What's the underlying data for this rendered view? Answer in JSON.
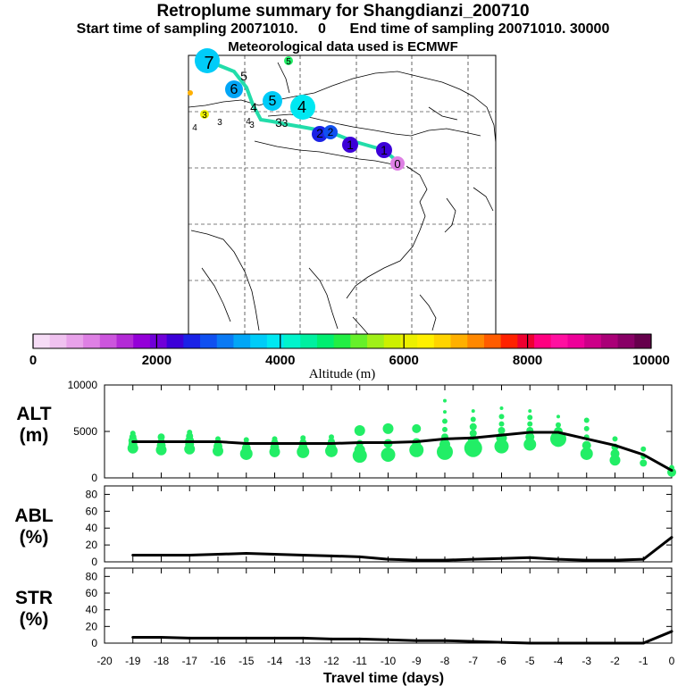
{
  "header": {
    "title": "Retroplume summary for Shangdianzi_200710",
    "subtitle": "Start time of sampling 20071010.     0      End time of sampling 20071010. 30000",
    "met_line": "Meteorological data used is ECMWF"
  },
  "colors": {
    "dot": "#22ee66",
    "line": "#000000",
    "track": "#22ddaa"
  },
  "chart_data": [
    {
      "type": "map",
      "name": "retroplume-map",
      "track_labels": [
        "7",
        "5",
        "5",
        "6",
        "5",
        "4",
        "4",
        "3",
        "3",
        "3",
        "4",
        "4",
        "3",
        "3",
        "2",
        "2",
        "1",
        "1",
        "0"
      ]
    },
    {
      "type": "colorbar",
      "title": "Altitude (m)",
      "range": [
        0,
        10000
      ],
      "ticks": [
        0,
        2000,
        4000,
        6000,
        8000,
        10000
      ],
      "colors": [
        "#f6dcf6",
        "#f0c2f0",
        "#e8a2ea",
        "#de80e4",
        "#cc55dd",
        "#b32ad6",
        "#9400d8",
        "#7000d8",
        "#3c00d8",
        "#1a22e6",
        "#1050f0",
        "#0a7af4",
        "#02a6f6",
        "#00ccf8",
        "#00e8f2",
        "#02f4cc",
        "#00f0a0",
        "#00ee70",
        "#22ee44",
        "#66f02a",
        "#a0f018",
        "#ccf000",
        "#ecf000",
        "#fff000",
        "#ffd400",
        "#ffb000",
        "#ff8800",
        "#ff5c00",
        "#ff2200",
        "#ee0030",
        "#ff0080",
        "#ff10a0",
        "#ee0099",
        "#cc0088",
        "#aa0077",
        "#880066",
        "#66004c"
      ]
    },
    {
      "type": "line",
      "name": "ALT",
      "ylabel": "ALT\n(m)",
      "ylim": [
        0,
        10000
      ],
      "yticks": [
        0,
        5000,
        10000
      ],
      "x": [
        -19,
        -18,
        -17,
        -16,
        -15,
        -14,
        -13,
        -12,
        -11,
        -10,
        -9,
        -8,
        -7,
        -6,
        -5,
        -4,
        -3,
        -2,
        -1,
        0
      ],
      "values": [
        3900,
        3900,
        3900,
        3900,
        3700,
        3700,
        3700,
        3700,
        3800,
        3800,
        3900,
        4200,
        4300,
        4600,
        4900,
        4900,
        4200,
        3500,
        2500,
        800
      ],
      "dots": [
        {
          "x": -19,
          "ys": [
            3200,
            3600,
            4000,
            4400,
            4800
          ],
          "s": [
            6,
            5,
            5,
            4,
            3
          ]
        },
        {
          "x": -18,
          "ys": [
            3000,
            3500,
            3900,
            4400
          ],
          "s": [
            6,
            5,
            4,
            4
          ]
        },
        {
          "x": -17,
          "ys": [
            3100,
            3600,
            4000,
            4500,
            4900
          ],
          "s": [
            6,
            5,
            5,
            4,
            3
          ]
        },
        {
          "x": -16,
          "ys": [
            2900,
            3400,
            3800,
            4200
          ],
          "s": [
            6,
            5,
            4,
            3
          ]
        },
        {
          "x": -15,
          "ys": [
            2600,
            3200,
            3600,
            4100
          ],
          "s": [
            7,
            5,
            4,
            3
          ]
        },
        {
          "x": -14,
          "ys": [
            2800,
            3300,
            3800,
            4200
          ],
          "s": [
            6,
            5,
            4,
            3
          ]
        },
        {
          "x": -13,
          "ys": [
            2800,
            3300,
            3800,
            4300
          ],
          "s": [
            7,
            5,
            4,
            3
          ]
        },
        {
          "x": -12,
          "ys": [
            2900,
            3400,
            3900,
            4400
          ],
          "s": [
            7,
            5,
            4,
            3
          ]
        },
        {
          "x": -11,
          "ys": [
            2400,
            3000,
            3700,
            5100
          ],
          "s": [
            8,
            6,
            4,
            6
          ]
        },
        {
          "x": -10,
          "ys": [
            2500,
            3700,
            5300
          ],
          "s": [
            8,
            5,
            6
          ]
        },
        {
          "x": -9,
          "ys": [
            3000,
            3800,
            5300
          ],
          "s": [
            8,
            5,
            5
          ]
        },
        {
          "x": -8,
          "ys": [
            2800,
            3600,
            4400,
            5200,
            6100,
            7100,
            8300
          ],
          "s": [
            9,
            6,
            4,
            3,
            3,
            2,
            2
          ]
        },
        {
          "x": -7,
          "ys": [
            3200,
            4000,
            4800,
            5500,
            6300,
            7200
          ],
          "s": [
            10,
            6,
            4,
            4,
            3,
            2
          ]
        },
        {
          "x": -6,
          "ys": [
            3400,
            4300,
            5100,
            5800,
            6600,
            7500
          ],
          "s": [
            8,
            6,
            4,
            3,
            3,
            2
          ]
        },
        {
          "x": -5,
          "ys": [
            3600,
            4400,
            5100,
            5800,
            6500,
            7200
          ],
          "s": [
            7,
            5,
            4,
            3,
            3,
            2
          ]
        },
        {
          "x": -4,
          "ys": [
            4200,
            5000,
            5700,
            6600
          ],
          "s": [
            9,
            5,
            3,
            2
          ]
        },
        {
          "x": -3,
          "ys": [
            2600,
            3500,
            4400,
            5300,
            6200
          ],
          "s": [
            7,
            5,
            3,
            3,
            3
          ]
        },
        {
          "x": -2,
          "ys": [
            1900,
            2600,
            3300,
            4200
          ],
          "s": [
            6,
            5,
            4,
            3
          ]
        },
        {
          "x": -1,
          "ys": [
            1600,
            2300,
            3100
          ],
          "s": [
            4,
            3,
            3
          ]
        },
        {
          "x": 0,
          "ys": [
            600,
            1100
          ],
          "s": [
            5,
            3
          ]
        }
      ]
    },
    {
      "type": "line",
      "name": "ABL",
      "ylabel": "ABL\n(%)",
      "ylim": [
        0,
        90
      ],
      "yticks": [
        0,
        20,
        40,
        60,
        80
      ],
      "x": [
        -19,
        -18,
        -17,
        -16,
        -15,
        -14,
        -13,
        -12,
        -11,
        -10,
        -9,
        -8,
        -7,
        -6,
        -5,
        -4,
        -3,
        -2,
        -1,
        0
      ],
      "values": [
        8,
        8,
        8,
        9,
        10,
        9,
        8,
        7,
        6,
        3,
        2,
        2,
        3,
        4,
        5,
        3,
        2,
        2,
        3,
        29
      ]
    },
    {
      "type": "line",
      "name": "STR",
      "ylabel": "STR\n(%)",
      "ylim": [
        0,
        90
      ],
      "yticks": [
        0,
        20,
        40,
        60,
        80
      ],
      "x": [
        -19,
        -18,
        -17,
        -16,
        -15,
        -14,
        -13,
        -12,
        -11,
        -10,
        -9,
        -8,
        -7,
        -6,
        -5,
        -4,
        -3,
        -2,
        -1,
        0
      ],
      "values": [
        7,
        7,
        6,
        6,
        6,
        6,
        6,
        5,
        5,
        4,
        3,
        3,
        2,
        1,
        0,
        0,
        0,
        0,
        0,
        14
      ],
      "xlabel": "Travel time (days)",
      "xlim": [
        -20,
        0
      ],
      "xticks": [
        -20,
        -19,
        -18,
        -17,
        -16,
        -15,
        -14,
        -13,
        -12,
        -11,
        -10,
        -9,
        -8,
        -7,
        -6,
        -5,
        -4,
        -3,
        -2,
        -1,
        0
      ]
    }
  ]
}
